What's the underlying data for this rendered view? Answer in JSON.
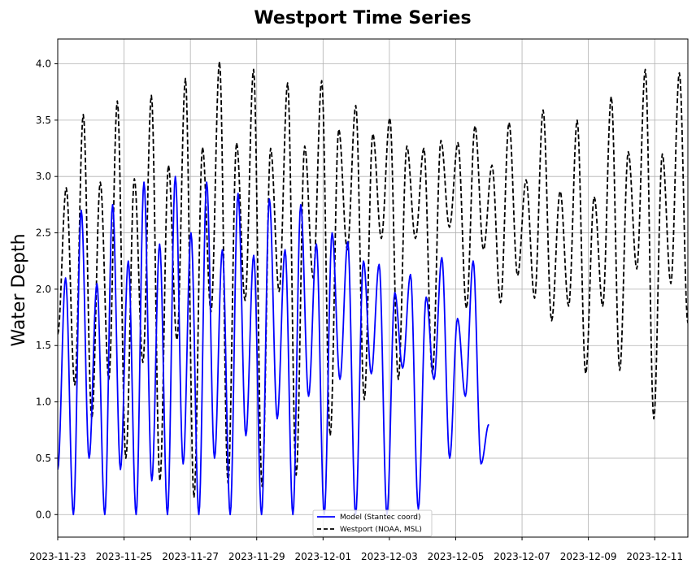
{
  "chart_data": {
    "type": "line",
    "title": "Westport Time Series",
    "xlabel": "",
    "ylabel": "Water Depth",
    "xlim": [
      "2023-11-23",
      "2023-12-12"
    ],
    "ylim": [
      -0.2,
      4.22
    ],
    "x_ticks": [
      "2023-11-23",
      "2023-11-25",
      "2023-11-27",
      "2023-11-29",
      "2023-12-01",
      "2023-12-03",
      "2023-12-05",
      "2023-12-07",
      "2023-12-09",
      "2023-12-11"
    ],
    "y_ticks": [
      "0.0",
      "0.5",
      "1.0",
      "1.5",
      "2.0",
      "2.5",
      "3.0",
      "3.5",
      "4.0"
    ],
    "grid": true,
    "legend_position": "bottom-center",
    "series": [
      {
        "name": "Model (Stantec coord)",
        "color": "#0000ff",
        "style": "solid",
        "x_start": "2023-11-23",
        "x_end": "2023-12-06",
        "peaks": [
          2.1,
          2.7,
          2.05,
          2.75,
          2.25,
          2.95,
          2.4,
          3.0,
          2.5,
          2.95,
          2.35,
          2.85,
          2.3,
          2.8,
          2.35,
          2.75,
          2.4,
          2.5,
          2.42,
          2.25,
          2.22,
          1.97,
          2.13,
          1.93,
          2.28,
          1.74,
          2.25
        ],
        "troughs": [
          0.4,
          0.0,
          0.5,
          0.0,
          0.4,
          0.0,
          0.3,
          0.0,
          0.45,
          0.0,
          0.5,
          0.0,
          0.7,
          0.0,
          0.85,
          0.0,
          1.05,
          0.0,
          1.2,
          0.0,
          1.25,
          0.0,
          1.3,
          0.05,
          1.2,
          0.5,
          1.05,
          0.45,
          0.8
        ]
      },
      {
        "name": "Westport (NOAA, MSL)",
        "color": "#000000",
        "style": "dashed",
        "x_start": "2023-11-23",
        "x_end": "2023-12-12",
        "peaks": [
          2.9,
          3.55,
          2.95,
          3.67,
          2.98,
          3.72,
          3.1,
          3.87,
          3.26,
          4.02,
          3.3,
          3.95,
          3.25,
          3.83,
          3.27,
          3.85,
          3.42,
          3.63,
          3.38,
          3.52,
          3.27,
          3.25,
          3.32,
          3.3,
          3.45,
          3.1,
          3.48,
          2.97,
          3.59,
          2.87,
          3.5,
          2.82,
          3.71,
          3.22,
          3.95,
          3.2,
          3.92
        ],
        "troughs": [
          1.6,
          1.15,
          0.85,
          1.2,
          0.5,
          1.35,
          0.3,
          1.55,
          0.15,
          1.8,
          0.28,
          1.9,
          0.25,
          1.98,
          0.35,
          2.1,
          0.7,
          2.35,
          1.02,
          2.45,
          1.2,
          2.45,
          1.25,
          2.55,
          1.83,
          2.35,
          1.88,
          2.12,
          1.92,
          1.72,
          1.85,
          1.25,
          1.85,
          1.28,
          2.18,
          0.85,
          2.05,
          1.7
        ]
      }
    ]
  }
}
